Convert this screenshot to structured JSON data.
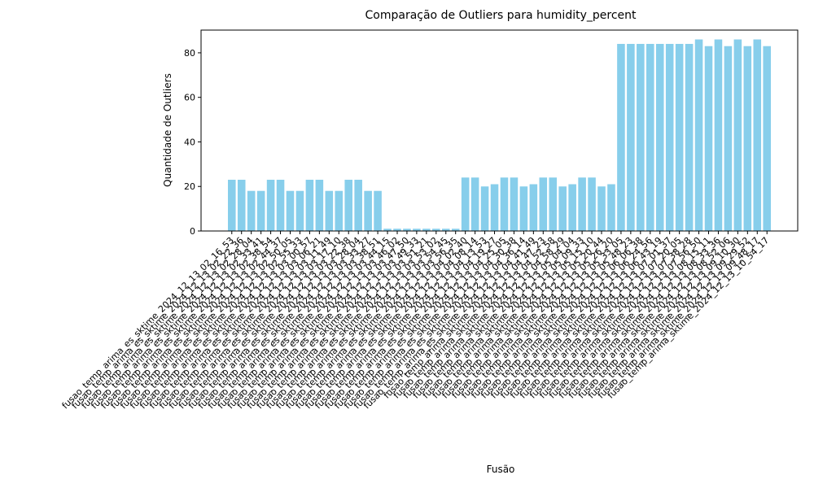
{
  "chart_data": {
    "type": "bar",
    "title": "Comparação de Outliers para humidity_percent",
    "xlabel": "Fusão",
    "ylabel": "Quantidade de Outliers",
    "color": "#87ceeb",
    "ylim": [
      0,
      90.2
    ],
    "yticks": [
      0,
      20,
      40,
      60,
      80
    ],
    "categories": [
      "fusao_temp_arima_es_sktime_2024_12_13_02_16_53",
      "fusao_temp_arima_es_sktime_2024_12_13_02_22_36",
      "fusao_temp_arima_es_sktime_2024_12_13_02_28_04",
      "fusao_temp_arima_es_sktime_2024_12_13_02_33_41",
      "fusao_temp_arima_es_sktime_2024_12_13_02_38_54",
      "fusao_temp_arima_es_sktime_2024_12_13_02_44_37",
      "fusao_temp_arima_es_sktime_2024_12_13_02_50_05",
      "fusao_temp_arima_es_sktime_2024_12_13_02_55_33",
      "fusao_temp_arima_es_sktime_2024_12_13_03_00_57",
      "fusao_temp_arima_es_sktime_2024_12_13_03_06_21",
      "fusao_temp_arima_es_sktime_2024_12_13_03_11_49",
      "fusao_temp_arima_es_sktime_2024_12_13_03_17_10",
      "fusao_temp_arima_es_sktime_2024_12_13_03_22_38",
      "fusao_temp_arima_es_sktime_2024_12_13_03_28_04",
      "fusao_temp_arima_es_sktime_2024_12_13_03_33_27",
      "fusao_temp_arima_es_sktime_2024_12_13_03_38_51",
      "fusao_temp_arima_es_sktime_2024_12_13_03_44_15",
      "fusao_temp_arima_es_sktime_2024_12_13_03_46_02",
      "fusao_temp_arima_es_sktime_2024_12_13_03_47_50",
      "fusao_temp_arima_es_sktime_2024_12_13_03_49_33",
      "fusao_temp_arima_es_sktime_2024_12_13_03_51_21",
      "fusao_temp_arima_es_sktime_2024_12_13_03_53_02",
      "fusao_temp_arima_es_sktime_2024_12_13_03_54_45",
      "fusao_temp_arima_es_sktime_2024_12_13_03_56_35",
      "fusao_temp_arima_es_sktime_2024_12_13_04_02_40",
      "fusao_temp_arima_es_sktime_2024_12_13_04_08_14",
      "fusao_temp_arima_es_sktime_2024_12_13_04_13_53",
      "fusao_temp_arima_es_sktime_2024_12_13_04_19_27",
      "fusao_temp_arima_es_sktime_2024_12_13_04_25_05",
      "fusao_temp_arima_es_sktime_2024_12_13_04_30_38",
      "fusao_temp_arima_es_sktime_2024_12_13_04_36_14",
      "fusao_temp_arima_es_sktime_2024_12_13_04_41_49",
      "fusao_temp_arima_sktime_2024_12_13_04_47_23",
      "fusao_temp_arima_sktime_2024_12_13_04_52_58",
      "fusao_temp_arima_sktime_2024_12_13_04_58_29",
      "fusao_temp_arima_sktime_2024_12_13_05_04_04",
      "fusao_temp_arima_sktime_2024_12_13_05_09_33",
      "fusao_temp_arima_sktime_2024_12_13_05_15_10",
      "fusao_temp_arima_sktime_2024_12_13_05_20_44",
      "fusao_temp_arima_sktime_2024_12_13_05_26_20",
      "fusao_temp_arima_sktime_2024_12_13_05_33_05",
      "fusao_temp_arima_sktime_2024_12_13_05_48_23",
      "fusao_temp_arima_sktime_2024_12_13_06_06_38",
      "fusao_temp_arima_sktime_2024_12_13_06_24_56",
      "fusao_temp_arima_sktime_2024_12_13_06_43_19",
      "fusao_temp_arima_sktime_2024_12_13_07_01_37",
      "fusao_temp_arima_sktime_2024_12_13_07_20_05",
      "fusao_temp_arima_sktime_2024_12_13_07_38_28",
      "fusao_temp_arima_sktime_2024_12_13_07_56_50",
      "fusao_temp_arima_sktime_2024_12_13_08_15_11",
      "fusao_temp_arima_sktime_2024_12_13_08_33_36",
      "fusao_temp_arima_sktime_2024_12_13_08_52_06",
      "fusao_temp_arima_sktime_2024_12_13_09_10_30",
      "fusao_temp_arima_sktime_2024_12_13_09_29_52",
      "fusao_temp_arima_sktime_2024_12_13_09_48_17",
      "fusao_temp_arima_sktime_2024_12_13_10_54_17"
    ],
    "values": [
      23,
      23,
      18,
      18,
      23,
      23,
      18,
      18,
      23,
      23,
      18,
      18,
      23,
      23,
      18,
      18,
      1,
      1,
      1,
      1,
      1,
      1,
      1,
      1,
      24,
      24,
      20,
      21,
      24,
      24,
      20,
      21,
      24,
      24,
      20,
      21,
      24,
      24,
      20,
      21,
      84,
      84,
      84,
      84,
      84,
      84,
      84,
      84,
      86,
      83,
      86,
      83,
      86,
      83,
      86,
      83
    ]
  }
}
